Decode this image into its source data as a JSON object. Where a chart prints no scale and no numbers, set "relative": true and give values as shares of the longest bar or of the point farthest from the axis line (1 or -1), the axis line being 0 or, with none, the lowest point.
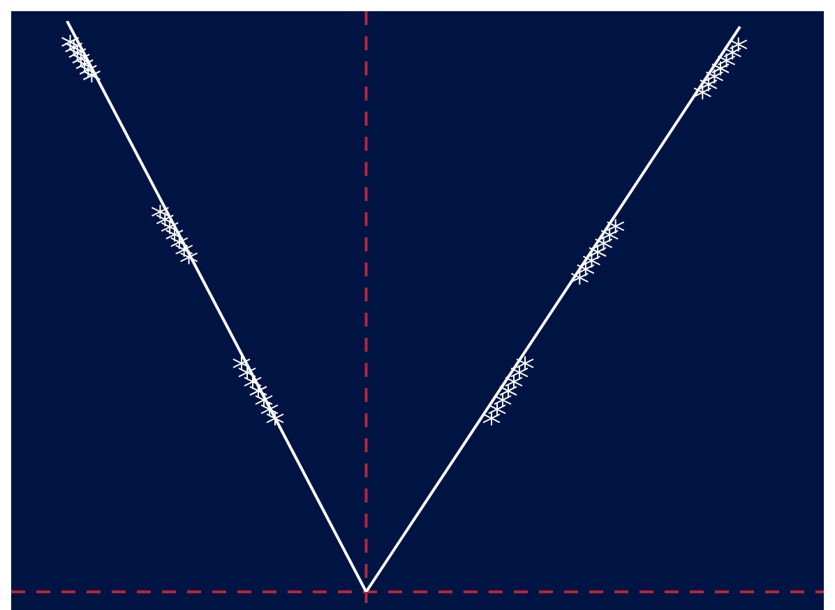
{
  "chart_data": {
    "type": "line",
    "relative": true,
    "categories": [
      null,
      null,
      null,
      null,
      null,
      null,
      null,
      null,
      null,
      null,
      null,
      null,
      null,
      null,
      null,
      null,
      null,
      null,
      null
    ],
    "series": [
      {
        "color": "#ffffff",
        "values": [
          1,
          0.875,
          0.75,
          0.625,
          0.5,
          0.375,
          0.25,
          0.125,
          0,
          0.099,
          0.198,
          0.297,
          0.396,
          0.495,
          0.594,
          0.693,
          0.792,
          0.891,
          0.99
        ]
      }
    ],
    "ref_lines": [
      {
        "axis": "y",
        "value": 0,
        "color": "#b0283c",
        "line_style": "dashed"
      }
    ],
    "marker": "none",
    "legend": false
  }
}
